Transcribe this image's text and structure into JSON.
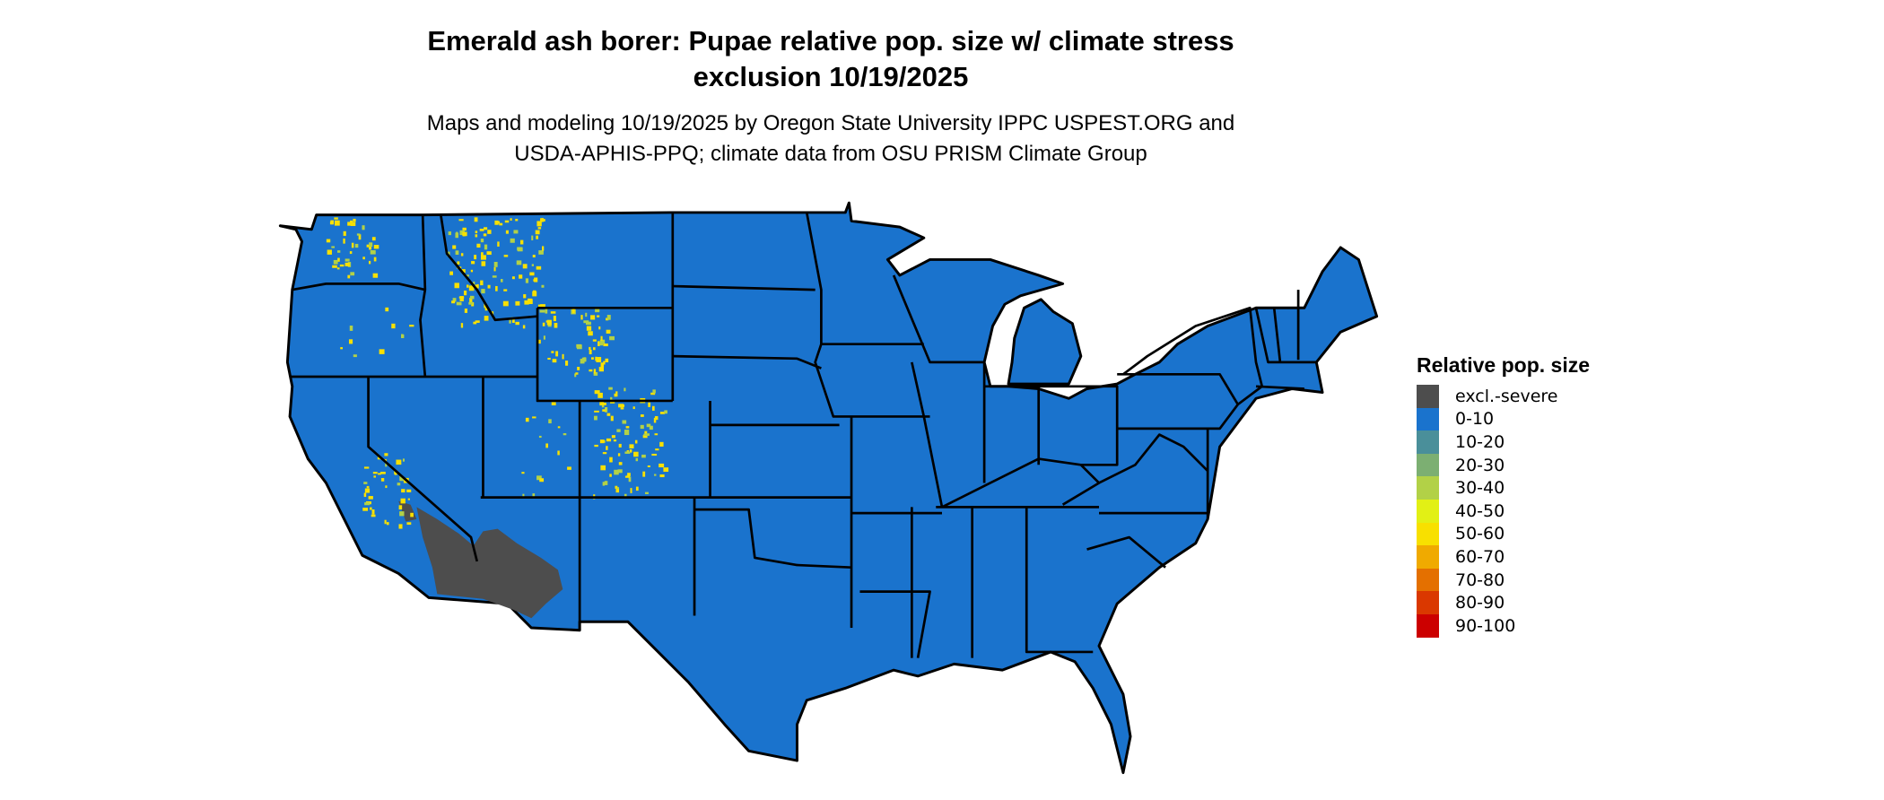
{
  "title": {
    "line1": "Emerald ash borer: Pupae relative pop. size w/ climate stress",
    "line2": "exclusion 10/19/2025"
  },
  "subtitle": {
    "line1": "Maps and modeling 10/19/2025 by Oregon State University IPPC USPEST.ORG and",
    "line2": "USDA-APHIS-PPQ; climate data from OSU PRISM Climate Group"
  },
  "map": {
    "region": "Contiguous United States",
    "dominant_class": "0-10",
    "colors": {
      "land": "#1A73CD",
      "border": "#000000",
      "excluded": "#4D4D4D",
      "highlight": "#F8E000"
    }
  },
  "legend": {
    "title": "Relative pop. size",
    "items": [
      {
        "label": "excl.-severe",
        "color": "#4D4D4D"
      },
      {
        "label": "0-10",
        "color": "#1A73CD"
      },
      {
        "label": "10-20",
        "color": "#4A8F9A"
      },
      {
        "label": "20-30",
        "color": "#7CAF72"
      },
      {
        "label": "30-40",
        "color": "#B2D147"
      },
      {
        "label": "40-50",
        "color": "#E2F015"
      },
      {
        "label": "50-60",
        "color": "#F8E000"
      },
      {
        "label": "60-70",
        "color": "#F0AA00"
      },
      {
        "label": "70-80",
        "color": "#E47000"
      },
      {
        "label": "80-90",
        "color": "#DA3800"
      },
      {
        "label": "90-100",
        "color": "#CC0000"
      }
    ]
  }
}
